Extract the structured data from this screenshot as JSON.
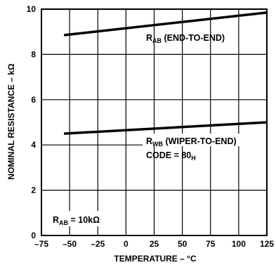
{
  "chart_data": {
    "type": "line",
    "xlabel": "TEMPERATURE – °C",
    "ylabel": "NOMINAL RESISTANCE – kΩ",
    "xlim": [
      -75,
      125
    ],
    "ylim": [
      0,
      10
    ],
    "x_ticks": [
      "–75",
      "–50",
      "–25",
      "0",
      "25",
      "50",
      "75",
      "100",
      "125"
    ],
    "y_ticks": [
      "0",
      "2",
      "4",
      "6",
      "8",
      "10"
    ],
    "grid": true,
    "series": [
      {
        "name_main": "R",
        "name_sub": "AB",
        "name_rest": " (END-TO-END)",
        "x": [
          -55,
          125
        ],
        "values": [
          8.85,
          9.85
        ]
      },
      {
        "name_main": "R",
        "name_sub": "WB",
        "name_rest": " (WIPER-TO-END)",
        "x": [
          -55,
          125
        ],
        "values": [
          4.5,
          5.0
        ]
      }
    ],
    "annotations": {
      "code_main": "CODE = 80",
      "code_sub": "H",
      "rab_main": "R",
      "rab_sub": "AB",
      "rab_rest": " = 10kΩ"
    }
  }
}
